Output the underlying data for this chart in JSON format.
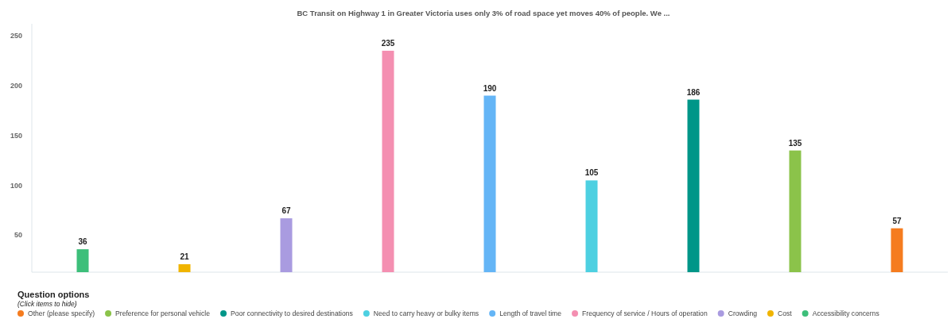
{
  "chart_data": {
    "type": "bar",
    "title": "BC Transit on Highway 1 in Greater Victoria uses only 3% of road space yet moves 40% of people. We ...",
    "categories": [
      null,
      null,
      null,
      null,
      null,
      null,
      null,
      null,
      null
    ],
    "series": [
      {
        "name": "Other (please specify)",
        "color": "#f57c1f",
        "values": [
          null,
          null,
          null,
          null,
          null,
          null,
          null,
          null,
          57
        ]
      },
      {
        "name": "Preference for personal vehicle",
        "color": "#8bc34a",
        "values": [
          null,
          null,
          null,
          null,
          null,
          null,
          null,
          135,
          null
        ]
      },
      {
        "name": "Poor connectivity to desired destinations",
        "color": "#009688",
        "values": [
          null,
          null,
          null,
          null,
          null,
          null,
          186,
          null,
          null
        ]
      },
      {
        "name": "Need to carry heavy or bulky items",
        "color": "#4dd0e1",
        "values": [
          null,
          null,
          null,
          null,
          null,
          105,
          null,
          null,
          null
        ]
      },
      {
        "name": "Length of travel time",
        "color": "#64b5f6",
        "values": [
          null,
          null,
          null,
          null,
          190,
          null,
          null,
          null,
          null
        ]
      },
      {
        "name": "Frequency of service / Hours of operation",
        "color": "#f48fb1",
        "values": [
          null,
          null,
          null,
          235,
          null,
          null,
          null,
          null,
          null
        ]
      },
      {
        "name": "Crowding",
        "color": "#a99be0",
        "values": [
          null,
          null,
          67,
          null,
          null,
          null,
          null,
          null,
          null
        ]
      },
      {
        "name": "Cost",
        "color": "#f0b400",
        "values": [
          null,
          21,
          null,
          null,
          null,
          null,
          null,
          null,
          null
        ]
      },
      {
        "name": "Accessibility concerns",
        "color": "#3dbf7a",
        "values": [
          36,
          null,
          null,
          null,
          null,
          null,
          null,
          null,
          null
        ]
      }
    ],
    "ylim": [
      13,
      262
    ],
    "yticks": [
      50,
      100,
      150,
      200,
      250
    ],
    "data_labels": true,
    "legend": "bottom",
    "legend_title": "Question options",
    "annotations": [
      "(Click items to hide)"
    ]
  }
}
